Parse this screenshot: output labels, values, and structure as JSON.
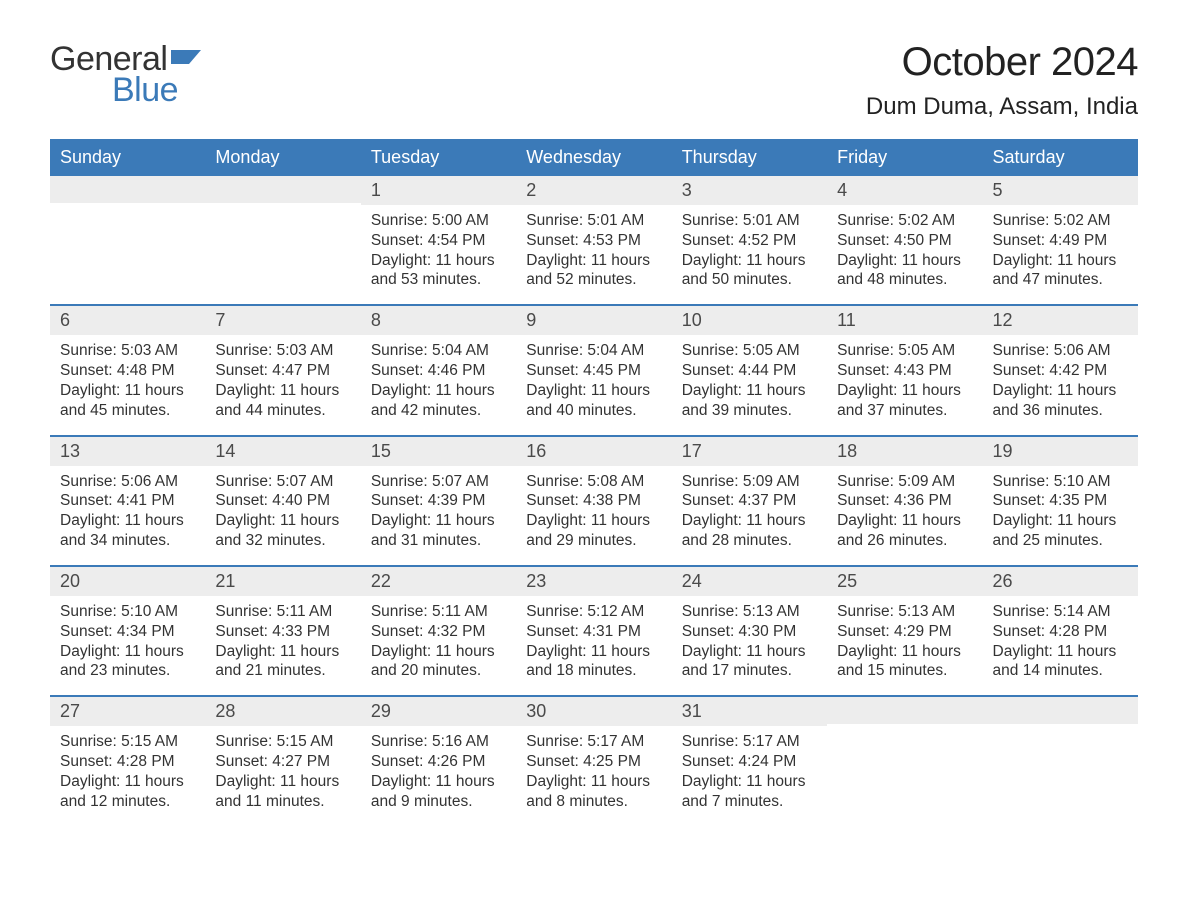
{
  "logo": {
    "word1": "General",
    "word2": "Blue"
  },
  "title": "October 2024",
  "location": "Dum Duma, Assam, India",
  "colors": {
    "header_bg": "#3b7ab8",
    "header_text": "#ffffff",
    "daynum_bg": "#ededed",
    "week_border": "#3b7ab8",
    "text": "#333333",
    "logo_blue": "#3b7ab8",
    "background": "#ffffff"
  },
  "fonts": {
    "title_size": 40,
    "location_size": 24,
    "dow_size": 18,
    "daynum_size": 18,
    "body_size": 15.5
  },
  "dow": [
    "Sunday",
    "Monday",
    "Tuesday",
    "Wednesday",
    "Thursday",
    "Friday",
    "Saturday"
  ],
  "weeks": [
    [
      {
        "num": "",
        "sunrise": "",
        "sunset": "",
        "daylight": ""
      },
      {
        "num": "",
        "sunrise": "",
        "sunset": "",
        "daylight": ""
      },
      {
        "num": "1",
        "sunrise": "Sunrise: 5:00 AM",
        "sunset": "Sunset: 4:54 PM",
        "daylight": "Daylight: 11 hours and 53 minutes."
      },
      {
        "num": "2",
        "sunrise": "Sunrise: 5:01 AM",
        "sunset": "Sunset: 4:53 PM",
        "daylight": "Daylight: 11 hours and 52 minutes."
      },
      {
        "num": "3",
        "sunrise": "Sunrise: 5:01 AM",
        "sunset": "Sunset: 4:52 PM",
        "daylight": "Daylight: 11 hours and 50 minutes."
      },
      {
        "num": "4",
        "sunrise": "Sunrise: 5:02 AM",
        "sunset": "Sunset: 4:50 PM",
        "daylight": "Daylight: 11 hours and 48 minutes."
      },
      {
        "num": "5",
        "sunrise": "Sunrise: 5:02 AM",
        "sunset": "Sunset: 4:49 PM",
        "daylight": "Daylight: 11 hours and 47 minutes."
      }
    ],
    [
      {
        "num": "6",
        "sunrise": "Sunrise: 5:03 AM",
        "sunset": "Sunset: 4:48 PM",
        "daylight": "Daylight: 11 hours and 45 minutes."
      },
      {
        "num": "7",
        "sunrise": "Sunrise: 5:03 AM",
        "sunset": "Sunset: 4:47 PM",
        "daylight": "Daylight: 11 hours and 44 minutes."
      },
      {
        "num": "8",
        "sunrise": "Sunrise: 5:04 AM",
        "sunset": "Sunset: 4:46 PM",
        "daylight": "Daylight: 11 hours and 42 minutes."
      },
      {
        "num": "9",
        "sunrise": "Sunrise: 5:04 AM",
        "sunset": "Sunset: 4:45 PM",
        "daylight": "Daylight: 11 hours and 40 minutes."
      },
      {
        "num": "10",
        "sunrise": "Sunrise: 5:05 AM",
        "sunset": "Sunset: 4:44 PM",
        "daylight": "Daylight: 11 hours and 39 minutes."
      },
      {
        "num": "11",
        "sunrise": "Sunrise: 5:05 AM",
        "sunset": "Sunset: 4:43 PM",
        "daylight": "Daylight: 11 hours and 37 minutes."
      },
      {
        "num": "12",
        "sunrise": "Sunrise: 5:06 AM",
        "sunset": "Sunset: 4:42 PM",
        "daylight": "Daylight: 11 hours and 36 minutes."
      }
    ],
    [
      {
        "num": "13",
        "sunrise": "Sunrise: 5:06 AM",
        "sunset": "Sunset: 4:41 PM",
        "daylight": "Daylight: 11 hours and 34 minutes."
      },
      {
        "num": "14",
        "sunrise": "Sunrise: 5:07 AM",
        "sunset": "Sunset: 4:40 PM",
        "daylight": "Daylight: 11 hours and 32 minutes."
      },
      {
        "num": "15",
        "sunrise": "Sunrise: 5:07 AM",
        "sunset": "Sunset: 4:39 PM",
        "daylight": "Daylight: 11 hours and 31 minutes."
      },
      {
        "num": "16",
        "sunrise": "Sunrise: 5:08 AM",
        "sunset": "Sunset: 4:38 PM",
        "daylight": "Daylight: 11 hours and 29 minutes."
      },
      {
        "num": "17",
        "sunrise": "Sunrise: 5:09 AM",
        "sunset": "Sunset: 4:37 PM",
        "daylight": "Daylight: 11 hours and 28 minutes."
      },
      {
        "num": "18",
        "sunrise": "Sunrise: 5:09 AM",
        "sunset": "Sunset: 4:36 PM",
        "daylight": "Daylight: 11 hours and 26 minutes."
      },
      {
        "num": "19",
        "sunrise": "Sunrise: 5:10 AM",
        "sunset": "Sunset: 4:35 PM",
        "daylight": "Daylight: 11 hours and 25 minutes."
      }
    ],
    [
      {
        "num": "20",
        "sunrise": "Sunrise: 5:10 AM",
        "sunset": "Sunset: 4:34 PM",
        "daylight": "Daylight: 11 hours and 23 minutes."
      },
      {
        "num": "21",
        "sunrise": "Sunrise: 5:11 AM",
        "sunset": "Sunset: 4:33 PM",
        "daylight": "Daylight: 11 hours and 21 minutes."
      },
      {
        "num": "22",
        "sunrise": "Sunrise: 5:11 AM",
        "sunset": "Sunset: 4:32 PM",
        "daylight": "Daylight: 11 hours and 20 minutes."
      },
      {
        "num": "23",
        "sunrise": "Sunrise: 5:12 AM",
        "sunset": "Sunset: 4:31 PM",
        "daylight": "Daylight: 11 hours and 18 minutes."
      },
      {
        "num": "24",
        "sunrise": "Sunrise: 5:13 AM",
        "sunset": "Sunset: 4:30 PM",
        "daylight": "Daylight: 11 hours and 17 minutes."
      },
      {
        "num": "25",
        "sunrise": "Sunrise: 5:13 AM",
        "sunset": "Sunset: 4:29 PM",
        "daylight": "Daylight: 11 hours and 15 minutes."
      },
      {
        "num": "26",
        "sunrise": "Sunrise: 5:14 AM",
        "sunset": "Sunset: 4:28 PM",
        "daylight": "Daylight: 11 hours and 14 minutes."
      }
    ],
    [
      {
        "num": "27",
        "sunrise": "Sunrise: 5:15 AM",
        "sunset": "Sunset: 4:28 PM",
        "daylight": "Daylight: 11 hours and 12 minutes."
      },
      {
        "num": "28",
        "sunrise": "Sunrise: 5:15 AM",
        "sunset": "Sunset: 4:27 PM",
        "daylight": "Daylight: 11 hours and 11 minutes."
      },
      {
        "num": "29",
        "sunrise": "Sunrise: 5:16 AM",
        "sunset": "Sunset: 4:26 PM",
        "daylight": "Daylight: 11 hours and 9 minutes."
      },
      {
        "num": "30",
        "sunrise": "Sunrise: 5:17 AM",
        "sunset": "Sunset: 4:25 PM",
        "daylight": "Daylight: 11 hours and 8 minutes."
      },
      {
        "num": "31",
        "sunrise": "Sunrise: 5:17 AM",
        "sunset": "Sunset: 4:24 PM",
        "daylight": "Daylight: 11 hours and 7 minutes."
      },
      {
        "num": "",
        "sunrise": "",
        "sunset": "",
        "daylight": ""
      },
      {
        "num": "",
        "sunrise": "",
        "sunset": "",
        "daylight": ""
      }
    ]
  ]
}
